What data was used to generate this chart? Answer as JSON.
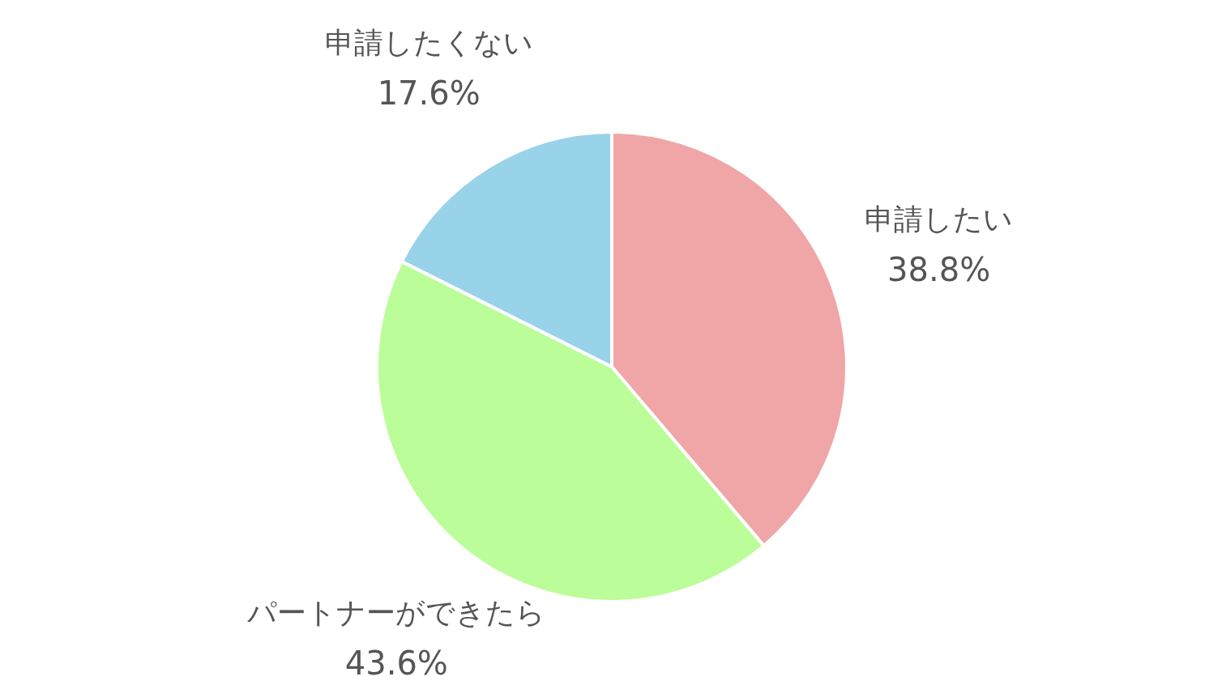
{
  "chart_data": {
    "type": "pie",
    "categories": [
      "申請したい",
      "パートナーができたら",
      "申請したくない"
    ],
    "values": [
      38.8,
      43.6,
      17.6
    ],
    "value_labels": [
      "38.8%",
      "43.6%",
      "17.6%"
    ],
    "colors": [
      "#f0a6a6",
      "#bbfd98",
      "#98d3ea"
    ],
    "legend": false
  }
}
